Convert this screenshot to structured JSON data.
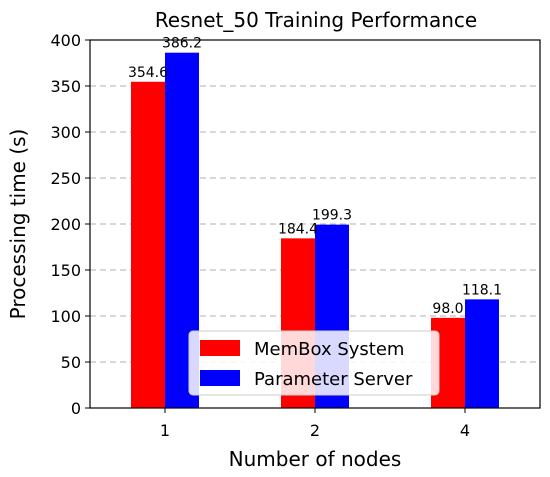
{
  "chart_data": {
    "type": "bar",
    "title": "Resnet_50 Training Performance",
    "xlabel": "Number of nodes",
    "ylabel": "Processing time (s)",
    "categories": [
      "1",
      "2",
      "4"
    ],
    "series": [
      {
        "name": "MemBox System",
        "values": [
          354.6,
          184.4,
          98.0
        ],
        "value_labels": [
          "354.6",
          "184.4",
          "98.0"
        ],
        "color": "#ff0000"
      },
      {
        "name": "Parameter Server",
        "values": [
          386.2,
          199.3,
          118.1
        ],
        "value_labels": [
          "386.2",
          "199.3",
          "118.1"
        ],
        "color": "#0000ff"
      }
    ],
    "ylim": [
      0,
      400
    ],
    "yticks": [
      0,
      50,
      100,
      150,
      200,
      250,
      300,
      350,
      400
    ],
    "grid": "y-dashed",
    "legend_position": "lower-center"
  }
}
